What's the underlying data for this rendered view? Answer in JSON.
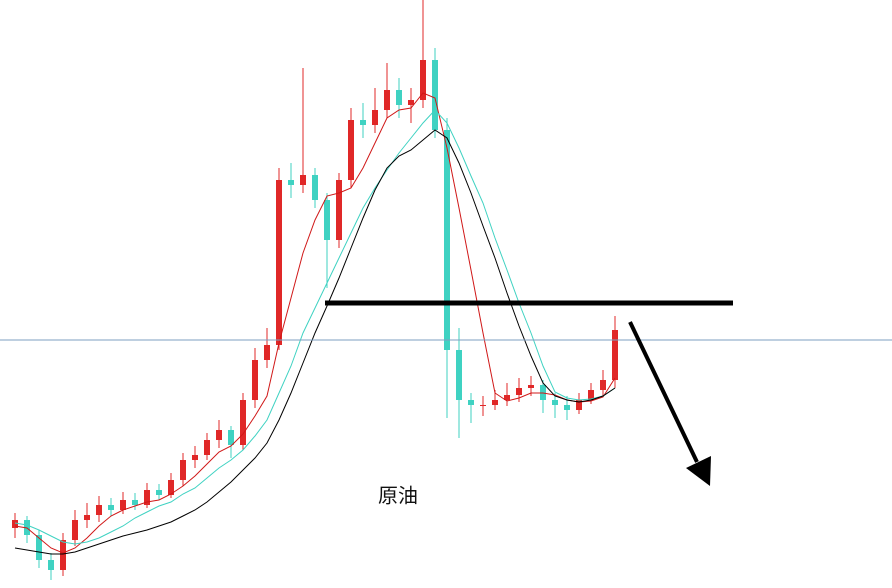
{
  "chart_data": {
    "type": "candlestick",
    "annotation": "原油",
    "up_color": "#e02828",
    "down_color": "#3fd2c2",
    "ylim": [
      0,
      588
    ],
    "open": [
      60,
      68,
      53,
      28,
      18,
      48,
      68,
      73,
      83,
      78,
      88,
      83,
      98,
      93,
      108,
      128,
      133,
      148,
      158,
      143,
      188,
      228,
      243,
      408,
      403,
      413,
      388,
      348,
      408,
      468,
      463,
      478,
      498,
      483,
      488,
      528,
      458,
      238,
      188,
      183,
      183,
      188,
      193,
      200,
      203,
      188,
      183,
      178,
      188,
      198,
      208
    ],
    "high": [
      75,
      72,
      58,
      35,
      55,
      78,
      85,
      92,
      90,
      96,
      95,
      105,
      104,
      115,
      135,
      142,
      155,
      168,
      162,
      195,
      240,
      260,
      420,
      425,
      520,
      420,
      395,
      415,
      480,
      485,
      500,
      525,
      510,
      500,
      588,
      540,
      470,
      260,
      195,
      192,
      198,
      205,
      210,
      212,
      208,
      195,
      192,
      195,
      205,
      218,
      272
    ],
    "low": [
      50,
      45,
      20,
      8,
      12,
      42,
      60,
      66,
      72,
      74,
      78,
      80,
      88,
      90,
      102,
      120,
      128,
      140,
      130,
      138,
      180,
      220,
      238,
      390,
      395,
      380,
      300,
      340,
      400,
      450,
      455,
      470,
      470,
      465,
      480,
      450,
      170,
      150,
      165,
      172,
      178,
      182,
      186,
      192,
      175,
      170,
      168,
      174,
      184,
      192,
      200
    ],
    "close": [
      68,
      53,
      28,
      18,
      48,
      68,
      73,
      83,
      78,
      88,
      83,
      98,
      93,
      108,
      128,
      133,
      148,
      158,
      143,
      188,
      228,
      243,
      408,
      403,
      413,
      388,
      348,
      408,
      468,
      463,
      478,
      498,
      483,
      488,
      528,
      458,
      238,
      188,
      183,
      183,
      188,
      193,
      200,
      203,
      188,
      183,
      178,
      188,
      198,
      208,
      258
    ],
    "moving_averages": [
      {
        "color": "#d01818",
        "values": [
          62,
          60,
          50,
          40,
          35,
          40,
          50,
          62,
          72,
          78,
          82,
          86,
          88,
          94,
          102,
          112,
          124,
          136,
          142,
          154,
          172,
          192,
          245,
          290,
          335,
          368,
          392,
          395,
          400,
          420,
          445,
          470,
          478,
          480,
          495,
          490,
          440,
          380,
          318,
          255,
          195,
          187,
          190,
          195,
          195,
          193,
          188,
          186,
          187,
          191,
          210
        ]
      },
      {
        "color": "#3fd2c2",
        "values": [
          65,
          63,
          58,
          52,
          46,
          44,
          46,
          50,
          56,
          62,
          70,
          76,
          82,
          86,
          94,
          100,
          110,
          120,
          128,
          138,
          152,
          168,
          195,
          222,
          255,
          280,
          305,
          330,
          355,
          380,
          400,
          418,
          435,
          450,
          465,
          478,
          465,
          440,
          412,
          385,
          350,
          318,
          285,
          255,
          222,
          196,
          190,
          188,
          189,
          192,
          200
        ]
      },
      {
        "color": "#000000",
        "values": [
          40,
          38,
          36,
          34,
          34,
          36,
          40,
          44,
          48,
          52,
          55,
          58,
          62,
          66,
          72,
          78,
          86,
          96,
          106,
          118,
          130,
          145,
          168,
          195,
          225,
          255,
          282,
          310,
          340,
          370,
          398,
          420,
          432,
          438,
          448,
          458,
          450,
          425,
          395,
          362,
          330,
          295,
          262,
          232,
          205,
          192,
          188,
          186,
          188,
          192,
          200
        ]
      }
    ],
    "levels": [
      {
        "value": 248,
        "color": "#7d9fc2"
      },
      {
        "value": 285,
        "color": "#000000"
      }
    ]
  }
}
